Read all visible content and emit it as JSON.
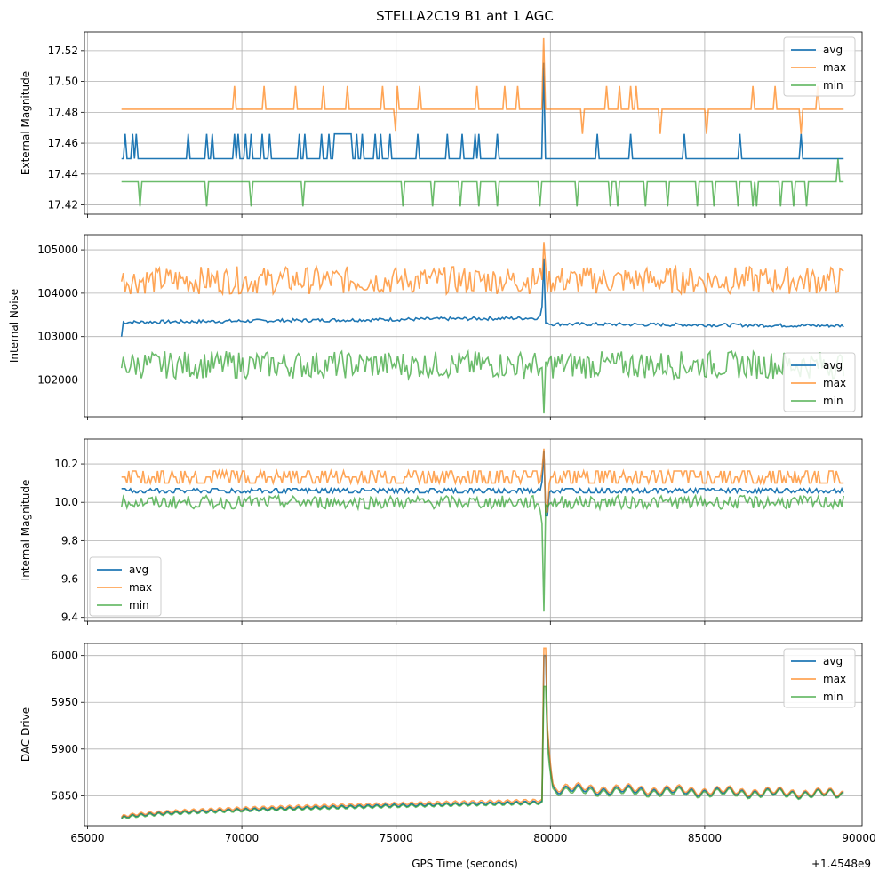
{
  "figure": {
    "title": "STELLA2C19 B1 ant 1 AGC",
    "xlabel": "GPS Time (seconds)",
    "x_offset_label": "+1.4548e9"
  },
  "colors": {
    "avg": "#1f77b4",
    "max": "#ff7f0e",
    "min": "#2ca02c"
  },
  "chart_data": [
    {
      "type": "line",
      "title": "STELLA2C19 B1 ant 1 AGC",
      "ylabel": "External Magnitude",
      "xlim": [
        64900,
        90100
      ],
      "ylim": [
        17.414,
        17.532
      ],
      "xticks": [
        65000,
        70000,
        75000,
        80000,
        85000,
        90000
      ],
      "yticks": [
        17.42,
        17.44,
        17.46,
        17.48,
        17.5,
        17.52
      ],
      "ytick_labels": [
        "17.42",
        "17.44",
        "17.46",
        "17.48",
        "17.50",
        "17.52"
      ],
      "legend": {
        "position": "top-right",
        "entries": [
          "avg",
          "max",
          "min"
        ]
      },
      "series": [
        {
          "name": "avg",
          "baseline": 17.45,
          "pulses": [
            [
              66200,
              17.466
            ],
            [
              66450,
              17.466
            ],
            [
              66600,
              17.466
            ],
            [
              67450,
              17.466
            ],
            [
              68250,
              17.466
            ],
            [
              68350,
              17.466
            ],
            [
              68850,
              17.466
            ],
            [
              69050,
              17.466
            ],
            [
              69750,
              17.466
            ],
            [
              69900,
              17.466
            ],
            [
              70100,
              17.466
            ],
            [
              70300,
              17.466
            ],
            [
              70450,
              17.466
            ],
            [
              70650,
              17.466
            ],
            [
              70900,
              17.466
            ],
            [
              71350,
              17.466
            ],
            [
              71850,
              17.466
            ],
            [
              72050,
              17.466
            ],
            [
              72600,
              17.466
            ],
            [
              72800,
              17.466
            ],
            [
              73700,
              17.466
            ],
            [
              73900,
              17.466
            ],
            [
              74300,
              17.466
            ],
            [
              74500,
              17.466
            ],
            [
              74800,
              17.466
            ],
            [
              75700,
              17.466
            ],
            [
              76650,
              17.466
            ],
            [
              77150,
              17.466
            ],
            [
              77350,
              17.466
            ],
            [
              77550,
              17.466
            ],
            [
              77700,
              17.466
            ],
            [
              78300,
              17.466
            ],
            [
              79150,
              17.466
            ],
            [
              81500,
              17.466
            ],
            [
              82600,
              17.466
            ],
            [
              84350,
              17.466
            ],
            [
              85150,
              17.466
            ],
            [
              86150,
              17.466
            ],
            [
              88100,
              17.466
            ]
          ],
          "plateaus": [
            [
              73000,
              73550,
              17.466
            ]
          ],
          "spike": {
            "x": 79800,
            "y": 17.512
          }
        },
        {
          "name": "max",
          "baseline": 17.482,
          "pulses": [
            [
              68350,
              17.497
            ],
            [
              69750,
              17.497
            ],
            [
              70700,
              17.497
            ],
            [
              71750,
              17.497
            ],
            [
              72650,
              17.497
            ],
            [
              73400,
              17.497
            ],
            [
              74550,
              17.497
            ],
            [
              75000,
              17.468
            ],
            [
              75050,
              17.497
            ],
            [
              75750,
              17.497
            ],
            [
              76750,
              17.497
            ],
            [
              77600,
              17.497
            ],
            [
              77950,
              17.497
            ],
            [
              78500,
              17.497
            ],
            [
              78950,
              17.497
            ],
            [
              81050,
              17.466
            ],
            [
              81800,
              17.497
            ],
            [
              82250,
              17.497
            ],
            [
              82600,
              17.497
            ],
            [
              82800,
              17.497
            ],
            [
              83550,
              17.466
            ],
            [
              85050,
              17.466
            ],
            [
              86550,
              17.497
            ],
            [
              87300,
              17.497
            ],
            [
              88100,
              17.466
            ],
            [
              88650,
              17.497
            ]
          ],
          "plateaus": [],
          "spike": {
            "x": 79800,
            "y": 17.528
          }
        },
        {
          "name": "min",
          "baseline": 17.435,
          "pulses": [
            [
              66000,
              17.435
            ],
            [
              66700,
              17.419
            ],
            [
              67150,
              17.435
            ],
            [
              68250,
              17.435
            ],
            [
              68850,
              17.419
            ],
            [
              70300,
              17.419
            ],
            [
              72000,
              17.419
            ],
            [
              74950,
              17.419
            ],
            [
              75200,
              17.419
            ],
            [
              76200,
              17.419
            ],
            [
              77100,
              17.419
            ],
            [
              77700,
              17.419
            ],
            [
              78300,
              17.419
            ],
            [
              79150,
              17.419
            ],
            [
              79650,
              17.419
            ],
            [
              80850,
              17.419
            ],
            [
              81550,
              17.419
            ],
            [
              81950,
              17.419
            ],
            [
              82200,
              17.419
            ],
            [
              83100,
              17.419
            ],
            [
              83800,
              17.419
            ],
            [
              84750,
              17.419
            ],
            [
              85300,
              17.419
            ],
            [
              86100,
              17.419
            ],
            [
              86550,
              17.419
            ],
            [
              86700,
              17.419
            ],
            [
              86950,
              17.419
            ],
            [
              87450,
              17.419
            ],
            [
              87900,
              17.419
            ],
            [
              88300,
              17.419
            ]
          ],
          "plateaus": [],
          "spike": {
            "x": 89300,
            "y": 17.45
          }
        }
      ]
    },
    {
      "type": "line",
      "ylabel": "Internal Noise",
      "xlim": [
        64900,
        90100
      ],
      "ylim": [
        101150,
        105350
      ],
      "xticks": [
        65000,
        70000,
        75000,
        80000,
        85000,
        90000
      ],
      "yticks": [
        102000,
        103000,
        104000,
        105000
      ],
      "ytick_labels": [
        "102000",
        "103000",
        "104000",
        "105000"
      ],
      "legend": {
        "position": "bottom-right",
        "entries": [
          "avg",
          "max",
          "min"
        ]
      },
      "series": [
        {
          "name": "avg",
          "level": 103330,
          "noise": 40,
          "start": 103000,
          "spike": {
            "x": 79800,
            "y": 104800
          },
          "drift": [
            [
              79600,
              103430
            ],
            [
              80000,
              103290
            ],
            [
              89500,
              103250
            ]
          ]
        },
        {
          "name": "max",
          "level": 104300,
          "noise": 320,
          "spike": {
            "x": 79800,
            "y": 105180
          }
        },
        {
          "name": "min",
          "level": 102350,
          "noise": 320,
          "spike": {
            "x": 79800,
            "y": 101230
          }
        }
      ]
    },
    {
      "type": "line",
      "ylabel": "Internal Magnitude",
      "xlim": [
        64900,
        90100
      ],
      "ylim": [
        9.38,
        10.33
      ],
      "xticks": [
        65000,
        70000,
        75000,
        80000,
        85000,
        90000
      ],
      "yticks": [
        9.4,
        9.6,
        9.8,
        10.0,
        10.2
      ],
      "ytick_labels": [
        "9.4",
        "9.6",
        "9.8",
        "10.0",
        "10.2"
      ],
      "legend": {
        "position": "bottom-left",
        "entries": [
          "avg",
          "max",
          "min"
        ]
      },
      "series": [
        {
          "name": "avg",
          "level": 10.05,
          "noise": 0.012,
          "spike": {
            "x": 79800,
            "y": 10.27
          },
          "dip": {
            "x": 79850,
            "y": 9.93
          }
        },
        {
          "name": "max",
          "level": 10.1,
          "noise": 0.035,
          "spike": {
            "x": 79800,
            "y": 10.28
          },
          "dip": {
            "x": 79850,
            "y": 9.95
          }
        },
        {
          "name": "min",
          "level": 10.0,
          "noise": 0.035,
          "spike": {
            "x": 79800,
            "y": 9.43
          },
          "dip": null
        }
      ]
    },
    {
      "type": "line",
      "ylabel": "DAC Drive",
      "xlim": [
        64900,
        90100
      ],
      "ylim": [
        5818,
        6013
      ],
      "xticks": [
        65000,
        70000,
        75000,
        80000,
        85000,
        90000
      ],
      "xtick_labels": [
        "65000",
        "70000",
        "75000",
        "80000",
        "85000",
        "90000"
      ],
      "yticks": [
        5850,
        5900,
        5950,
        6000
      ],
      "ytick_labels": [
        "5850",
        "5900",
        "5950",
        "6000"
      ],
      "legend": {
        "position": "top-right",
        "entries": [
          "avg",
          "max",
          "min"
        ]
      },
      "series": [
        {
          "name": "avg",
          "start": 5826,
          "pre_end": 5843,
          "spike_y": 6000,
          "post": 5857,
          "end": 5852
        },
        {
          "name": "max",
          "start": 5827,
          "pre_end": 5845,
          "spike_y": 6008,
          "post": 5859,
          "end": 5853
        },
        {
          "name": "min",
          "start": 5825,
          "pre_end": 5842,
          "spike_y": 5967,
          "post": 5855,
          "end": 5851
        }
      ]
    }
  ]
}
